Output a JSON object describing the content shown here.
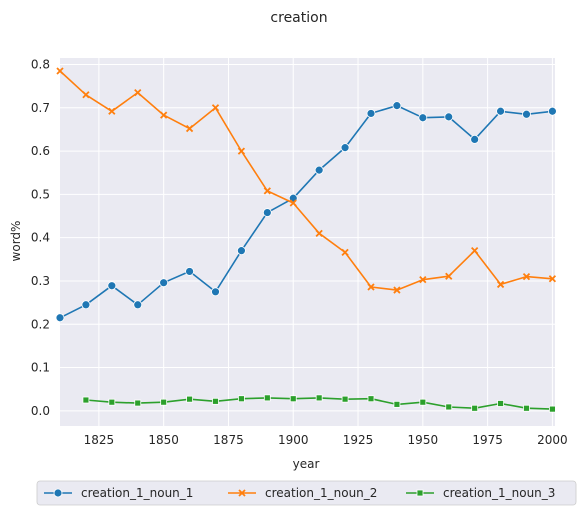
{
  "chart_data": {
    "type": "line",
    "title": "creation",
    "xlabel": "year",
    "ylabel": "word%",
    "xlim": [
      1810,
      2001
    ],
    "ylim": [
      -0.035,
      0.815
    ],
    "xticks": [
      1825,
      1850,
      1875,
      1900,
      1925,
      1950,
      1975,
      2000
    ],
    "yticks": [
      0.0,
      0.1,
      0.2,
      0.3,
      0.4,
      0.5,
      0.6,
      0.7,
      0.8
    ],
    "xtick_labels": [
      "1825",
      "1850",
      "1875",
      "1900",
      "1925",
      "1950",
      "1975",
      "2000"
    ],
    "ytick_labels": [
      "0.0",
      "0.1",
      "0.2",
      "0.3",
      "0.4",
      "0.5",
      "0.6",
      "0.7",
      "0.8"
    ],
    "grid": true,
    "background": "#eaeaf2",
    "legend_position": "bottom-center",
    "series": [
      {
        "name": "creation_1_noun_1",
        "color": "#1f77b4",
        "marker": "circle",
        "points": [
          [
            1810,
            0.215
          ],
          [
            1820,
            0.245
          ],
          [
            1830,
            0.289
          ],
          [
            1840,
            0.245
          ],
          [
            1850,
            0.296
          ],
          [
            1860,
            0.322
          ],
          [
            1870,
            0.275
          ],
          [
            1880,
            0.37
          ],
          [
            1890,
            0.458
          ],
          [
            1900,
            0.491
          ],
          [
            1910,
            0.556
          ],
          [
            1920,
            0.608
          ],
          [
            1930,
            0.687
          ],
          [
            1940,
            0.705
          ],
          [
            1950,
            0.677
          ],
          [
            1960,
            0.679
          ],
          [
            1970,
            0.627
          ],
          [
            1980,
            0.692
          ],
          [
            1990,
            0.685
          ],
          [
            2000,
            0.692
          ]
        ]
      },
      {
        "name": "creation_1_noun_2",
        "color": "#ff7f0e",
        "marker": "x",
        "points": [
          [
            1810,
            0.785
          ],
          [
            1820,
            0.73
          ],
          [
            1830,
            0.692
          ],
          [
            1840,
            0.735
          ],
          [
            1850,
            0.683
          ],
          [
            1860,
            0.652
          ],
          [
            1870,
            0.7
          ],
          [
            1880,
            0.6
          ],
          [
            1890,
            0.508
          ],
          [
            1900,
            0.48
          ],
          [
            1910,
            0.41
          ],
          [
            1920,
            0.366
          ],
          [
            1930,
            0.286
          ],
          [
            1940,
            0.279
          ],
          [
            1950,
            0.303
          ],
          [
            1960,
            0.311
          ],
          [
            1970,
            0.37
          ],
          [
            1980,
            0.292
          ],
          [
            1990,
            0.31
          ],
          [
            2000,
            0.305
          ]
        ]
      },
      {
        "name": "creation_1_noun_3",
        "color": "#2ca02c",
        "marker": "square",
        "points": [
          [
            1820,
            0.025
          ],
          [
            1830,
            0.02
          ],
          [
            1840,
            0.018
          ],
          [
            1850,
            0.02
          ],
          [
            1860,
            0.027
          ],
          [
            1870,
            0.022
          ],
          [
            1880,
            0.028
          ],
          [
            1890,
            0.03
          ],
          [
            1900,
            0.028
          ],
          [
            1910,
            0.03
          ],
          [
            1920,
            0.027
          ],
          [
            1930,
            0.028
          ],
          [
            1940,
            0.015
          ],
          [
            1950,
            0.02
          ],
          [
            1960,
            0.009
          ],
          [
            1970,
            0.006
          ],
          [
            1980,
            0.017
          ],
          [
            1990,
            0.006
          ],
          [
            2000,
            0.004
          ]
        ]
      }
    ]
  }
}
